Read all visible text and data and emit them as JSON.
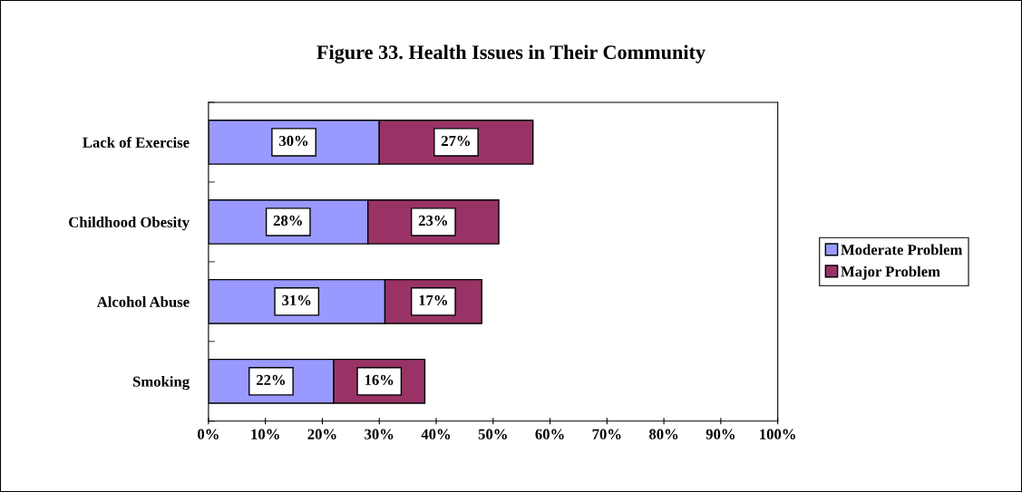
{
  "chart_data": {
    "type": "bar",
    "orientation": "horizontal",
    "stacked": true,
    "title": "Figure 33. Health Issues in Their Community",
    "categories": [
      "Lack of Exercise",
      "Childhood Obesity",
      "Alcohol Abuse",
      "Smoking"
    ],
    "series": [
      {
        "name": "Moderate Problem",
        "color": "#9999ff",
        "values": [
          30,
          28,
          31,
          22
        ],
        "value_labels": [
          "30%",
          "28%",
          "31%",
          "22%"
        ]
      },
      {
        "name": "Major Problem",
        "color": "#993366",
        "values": [
          27,
          23,
          17,
          16
        ],
        "value_labels": [
          "27%",
          "23%",
          "17%",
          "16%"
        ]
      }
    ],
    "xlim": [
      0,
      100
    ],
    "xticks": [
      {
        "value": 0,
        "label": "0%"
      },
      {
        "value": 10,
        "label": "10%"
      },
      {
        "value": 20,
        "label": "20%"
      },
      {
        "value": 30,
        "label": "30%"
      },
      {
        "value": 40,
        "label": "40%"
      },
      {
        "value": 50,
        "label": "50%"
      },
      {
        "value": 60,
        "label": "60%"
      },
      {
        "value": 70,
        "label": "70%"
      },
      {
        "value": 80,
        "label": "80%"
      },
      {
        "value": 90,
        "label": "90%"
      },
      {
        "value": 100,
        "label": "100%"
      }
    ],
    "grid": false,
    "legend": "right"
  }
}
